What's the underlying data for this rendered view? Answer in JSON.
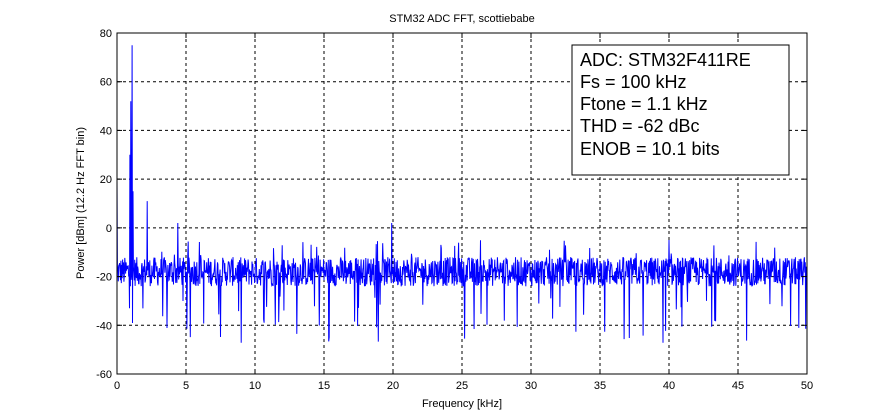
{
  "chart_data": {
    "type": "line",
    "title": "STM32 ADC FFT, scottiebabe",
    "xlabel": "Frequency [kHz]",
    "ylabel": "Power [dBm] (12.2 Hz FFT bin)",
    "xlim": [
      0,
      50
    ],
    "ylim": [
      -60,
      80
    ],
    "xticks": [
      "0",
      "5",
      "10",
      "15",
      "20",
      "25",
      "30",
      "35",
      "40",
      "45",
      "50"
    ],
    "yticks": [
      "80",
      "60",
      "40",
      "20",
      "0",
      "-20",
      "-40",
      "-60"
    ],
    "grid": true,
    "series_color": "#0000ff",
    "bin_width_hz": 12.2,
    "noise_floor_dbm": -18,
    "noise_range_dbm": [
      -48,
      -5
    ],
    "peaks": [
      {
        "x": 0.0,
        "y": 20
      },
      {
        "x": 0.95,
        "y": 30
      },
      {
        "x": 1.0,
        "y": 52
      },
      {
        "x": 1.1,
        "y": 75
      },
      {
        "x": 1.15,
        "y": 15
      },
      {
        "x": 2.2,
        "y": 11
      },
      {
        "x": 4.4,
        "y": 2
      },
      {
        "x": 19.9,
        "y": 2
      },
      {
        "x": 40.0,
        "y": -5
      }
    ],
    "annotation": [
      "ADC: STM32F411RE",
      "Fs = 100 kHz",
      "Ftone = 1.1 kHz",
      "THD = -62 dBc",
      "ENOB = 10.1 bits"
    ],
    "legend_placement": "top-right"
  }
}
